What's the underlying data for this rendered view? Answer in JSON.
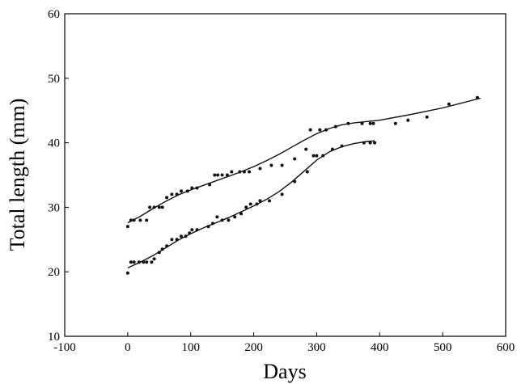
{
  "chart_data": {
    "type": "scatter",
    "xlabel": "Days",
    "ylabel": "Total length (mm)",
    "xlim": [
      -100,
      600
    ],
    "ylim": [
      10,
      60
    ],
    "xticks": [
      -100,
      0,
      100,
      200,
      300,
      400,
      500,
      600
    ],
    "yticks": [
      10,
      20,
      30,
      40,
      50,
      60
    ],
    "grid": false,
    "legend": "none",
    "series": [
      {
        "points": [
          [
            0,
            27
          ],
          [
            5,
            28
          ],
          [
            10,
            28
          ],
          [
            20,
            28
          ],
          [
            30,
            28
          ],
          [
            35,
            30
          ],
          [
            42,
            30
          ],
          [
            50,
            30
          ],
          [
            55,
            30
          ],
          [
            62,
            31.5
          ],
          [
            70,
            32
          ],
          [
            78,
            32
          ],
          [
            85,
            32.5
          ],
          [
            95,
            32.5
          ],
          [
            102,
            33
          ],
          [
            110,
            33
          ],
          [
            130,
            33.5
          ],
          [
            138,
            35
          ],
          [
            143,
            35
          ],
          [
            150,
            35
          ],
          [
            158,
            35
          ],
          [
            165,
            35.5
          ],
          [
            178,
            35.5
          ],
          [
            185,
            35.5
          ],
          [
            193,
            35.5
          ],
          [
            210,
            36
          ],
          [
            228,
            36.5
          ],
          [
            245,
            36.5
          ],
          [
            265,
            37.5
          ],
          [
            283,
            39
          ],
          [
            290,
            42
          ],
          [
            295,
            38
          ],
          [
            305,
            42
          ],
          [
            310,
            38
          ],
          [
            315,
            42
          ],
          [
            325,
            39
          ],
          [
            330,
            42.5
          ],
          [
            350,
            43
          ],
          [
            372,
            43
          ],
          [
            385,
            43
          ],
          [
            390,
            43
          ],
          [
            425,
            43
          ],
          [
            445,
            43.5
          ],
          [
            475,
            44
          ],
          [
            510,
            46
          ],
          [
            555,
            47
          ]
        ],
        "fit": [
          [
            0,
            27.6
          ],
          [
            20,
            28.6
          ],
          [
            40,
            29.8
          ],
          [
            60,
            30.9
          ],
          [
            80,
            31.9
          ],
          [
            100,
            32.7
          ],
          [
            120,
            33.4
          ],
          [
            140,
            34.1
          ],
          [
            160,
            34.8
          ],
          [
            180,
            35.5
          ],
          [
            200,
            36.3
          ],
          [
            220,
            37.2
          ],
          [
            240,
            38.2
          ],
          [
            260,
            39.3
          ],
          [
            280,
            40.4
          ],
          [
            300,
            41.4
          ],
          [
            320,
            42.2
          ],
          [
            340,
            42.8
          ],
          [
            360,
            43.1
          ],
          [
            380,
            43.3
          ],
          [
            400,
            43.5
          ],
          [
            450,
            44.4
          ],
          [
            500,
            45.4
          ],
          [
            560,
            46.9
          ]
        ]
      },
      {
        "points": [
          [
            0,
            19.8
          ],
          [
            5,
            21.5
          ],
          [
            10,
            21.5
          ],
          [
            18,
            21.5
          ],
          [
            25,
            21.5
          ],
          [
            30,
            21.5
          ],
          [
            38,
            21.5
          ],
          [
            42,
            22
          ],
          [
            50,
            23
          ],
          [
            55,
            23.5
          ],
          [
            62,
            24
          ],
          [
            70,
            25
          ],
          [
            78,
            25
          ],
          [
            85,
            25.5
          ],
          [
            92,
            25.5
          ],
          [
            98,
            26
          ],
          [
            102,
            26.5
          ],
          [
            110,
            26.5
          ],
          [
            128,
            27
          ],
          [
            135,
            27.5
          ],
          [
            142,
            28.5
          ],
          [
            150,
            28
          ],
          [
            160,
            28
          ],
          [
            170,
            28.5
          ],
          [
            180,
            29
          ],
          [
            188,
            30
          ],
          [
            195,
            30.5
          ],
          [
            205,
            30.5
          ],
          [
            210,
            31
          ],
          [
            225,
            31
          ],
          [
            245,
            32
          ],
          [
            265,
            34
          ],
          [
            285,
            35.5
          ],
          [
            300,
            38
          ],
          [
            340,
            39.5
          ],
          [
            375,
            40
          ],
          [
            385,
            40
          ],
          [
            392,
            40
          ]
        ],
        "fit": [
          [
            0,
            20.6
          ],
          [
            20,
            21.5
          ],
          [
            40,
            22.5
          ],
          [
            60,
            23.7
          ],
          [
            80,
            24.9
          ],
          [
            100,
            25.9
          ],
          [
            120,
            26.8
          ],
          [
            140,
            27.6
          ],
          [
            160,
            28.4
          ],
          [
            180,
            29.3
          ],
          [
            200,
            30.2
          ],
          [
            220,
            31.2
          ],
          [
            240,
            32.4
          ],
          [
            260,
            33.9
          ],
          [
            280,
            35.6
          ],
          [
            300,
            37.3
          ],
          [
            320,
            38.6
          ],
          [
            340,
            39.4
          ],
          [
            360,
            39.9
          ],
          [
            380,
            40.2
          ],
          [
            392,
            40.3
          ]
        ]
      }
    ]
  }
}
